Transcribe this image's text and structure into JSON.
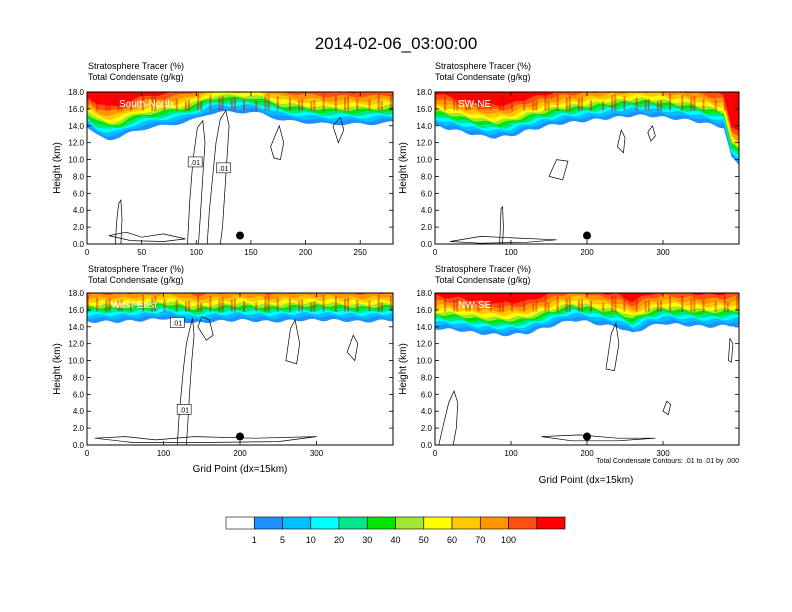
{
  "title": "2014-02-06_03:00:00",
  "colors": {
    "scale": [
      "#ffffff",
      "#1e90ff",
      "#00bfff",
      "#00ffff",
      "#00e68c",
      "#00e600",
      "#a0e632",
      "#ffff00",
      "#ffc800",
      "#ff9600",
      "#ff5014",
      "#ff0000"
    ],
    "contour": "#000000",
    "marker": "#000000"
  },
  "colorbar": {
    "tick_labels": [
      "1",
      "5",
      "10",
      "20",
      "30",
      "40",
      "50",
      "60",
      "70",
      "100"
    ]
  },
  "chart_data": [
    {
      "type": "contour",
      "panel": "top-left",
      "label": "South-North",
      "subtitle_line1": "Stratosphere Tracer   (%)",
      "subtitle_line2": "Total Condensate   (g/kg)",
      "ylabel": "Height (km)",
      "xlabel": "",
      "xlim": [
        0,
        280
      ],
      "ylim": [
        0,
        18
      ],
      "xticks": [
        0,
        50,
        100,
        150,
        200,
        250
      ],
      "yticks": [
        0,
        2,
        4,
        6,
        8,
        10,
        12,
        14,
        16,
        18
      ],
      "tropopause_km": [
        [
          0,
          14.6
        ],
        [
          5,
          14.0
        ],
        [
          10,
          13.6
        ],
        [
          20,
          13.2
        ],
        [
          30,
          13.4
        ],
        [
          40,
          14.0
        ],
        [
          50,
          14.4
        ],
        [
          60,
          14.6
        ],
        [
          70,
          14.8
        ],
        [
          80,
          15.0
        ],
        [
          90,
          15.2
        ],
        [
          100,
          15.6
        ],
        [
          110,
          16.2
        ],
        [
          120,
          16.4
        ],
        [
          140,
          16.4
        ],
        [
          150,
          16.4
        ],
        [
          160,
          16.2
        ],
        [
          170,
          15.8
        ],
        [
          180,
          15.4
        ],
        [
          200,
          15.2
        ],
        [
          220,
          15.0
        ],
        [
          240,
          15.0
        ],
        [
          260,
          15.0
        ],
        [
          280,
          15.2
        ]
      ],
      "contour_labels": [
        ".01",
        ".01"
      ],
      "marker": [
        140,
        1.0
      ]
    },
    {
      "type": "contour",
      "panel": "top-right",
      "label": "SW-NE",
      "subtitle_line1": "Stratosphere Tracer   (%)",
      "subtitle_line2": "Total Condensate   (g/kg)",
      "ylabel": "Height (km)",
      "xlabel": "",
      "xlim": [
        0,
        400
      ],
      "ylim": [
        0,
        18
      ],
      "xticks": [
        0,
        100,
        200,
        300
      ],
      "yticks": [
        0,
        2,
        4,
        6,
        8,
        10,
        12,
        14,
        16,
        18
      ],
      "tropopause_km": [
        [
          0,
          14.8
        ],
        [
          20,
          14.4
        ],
        [
          40,
          14.0
        ],
        [
          60,
          13.6
        ],
        [
          80,
          13.4
        ],
        [
          100,
          13.6
        ],
        [
          120,
          14.2
        ],
        [
          140,
          14.6
        ],
        [
          160,
          15.0
        ],
        [
          180,
          15.2
        ],
        [
          200,
          15.4
        ],
        [
          220,
          15.6
        ],
        [
          240,
          15.8
        ],
        [
          260,
          16.0
        ],
        [
          280,
          16.0
        ],
        [
          300,
          15.8
        ],
        [
          320,
          15.6
        ],
        [
          340,
          15.4
        ],
        [
          360,
          15.0
        ],
        [
          380,
          14.6
        ],
        [
          390,
          11.0
        ],
        [
          400,
          10.2
        ]
      ],
      "contour_labels": [],
      "marker": [
        200,
        1.0
      ]
    },
    {
      "type": "contour",
      "panel": "bottom-left",
      "label": "West-East",
      "subtitle_line1": "Stratosphere Tracer   (%)",
      "subtitle_line2": "Total Condensate   (g/kg)",
      "ylabel": "Height (km)",
      "xlabel": "Grid Point (dx=15km)",
      "xlim": [
        0,
        400
      ],
      "ylim": [
        0,
        18
      ],
      "xticks": [
        0,
        100,
        200,
        300
      ],
      "yticks": [
        0,
        2,
        4,
        6,
        8,
        10,
        12,
        14,
        16,
        18
      ],
      "tropopause_km": [
        [
          0,
          15.4
        ],
        [
          40,
          15.4
        ],
        [
          80,
          15.6
        ],
        [
          100,
          15.8
        ],
        [
          120,
          15.6
        ],
        [
          140,
          15.2
        ],
        [
          160,
          15.4
        ],
        [
          200,
          15.6
        ],
        [
          240,
          15.4
        ],
        [
          280,
          15.6
        ],
        [
          320,
          15.6
        ],
        [
          360,
          15.4
        ],
        [
          400,
          15.6
        ]
      ],
      "contour_labels": [
        ".01",
        ".01"
      ],
      "marker": [
        200,
        1.0
      ]
    },
    {
      "type": "contour",
      "panel": "bottom-right",
      "label": "NW-SE",
      "subtitle_line1": "Stratosphere Tracer   (%)",
      "subtitle_line2": "Total Condensate   (g/kg)",
      "ylabel": "Height (km)",
      "xlabel": "Grid Point (dx=15km)",
      "xlim": [
        0,
        400
      ],
      "ylim": [
        0,
        18
      ],
      "xticks": [
        0,
        100,
        200,
        300
      ],
      "yticks": [
        0,
        2,
        4,
        6,
        8,
        10,
        12,
        14,
        16,
        18
      ],
      "tropopause_km": [
        [
          0,
          14.6
        ],
        [
          30,
          14.4
        ],
        [
          60,
          14.0
        ],
        [
          90,
          13.8
        ],
        [
          120,
          14.0
        ],
        [
          150,
          14.8
        ],
        [
          180,
          15.6
        ],
        [
          200,
          15.4
        ],
        [
          220,
          15.0
        ],
        [
          240,
          14.8
        ],
        [
          260,
          14.0
        ],
        [
          280,
          14.8
        ],
        [
          300,
          15.2
        ],
        [
          330,
          15.0
        ],
        [
          360,
          14.8
        ],
        [
          400,
          15.0
        ]
      ],
      "contour_labels": [],
      "marker": [
        200,
        1.0
      ],
      "footnote": "Total Condensate Contours: .01 to .01 by .000"
    }
  ]
}
